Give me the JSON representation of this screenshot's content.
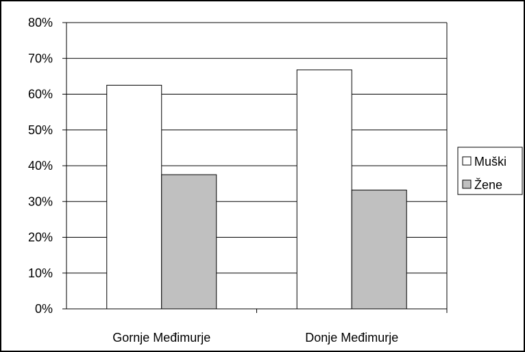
{
  "chart_data": {
    "type": "bar",
    "title": "",
    "xlabel": "",
    "ylabel": "",
    "categories": [
      "Gornje Međimurje",
      "Donje Međimurje"
    ],
    "series": [
      {
        "name": "Muški",
        "values": [
          62.5,
          66.8
        ],
        "color": "#ffffff"
      },
      {
        "name": "Žene",
        "values": [
          37.5,
          33.2
        ],
        "color": "#c0c0c0"
      }
    ],
    "ylim": [
      0,
      80
    ],
    "yticks": [
      0,
      10,
      20,
      30,
      40,
      50,
      60,
      70,
      80
    ],
    "ytick_labels": [
      "0%",
      "10%",
      "20%",
      "30%",
      "40%",
      "50%",
      "60%",
      "70%",
      "80%"
    ],
    "grid": true,
    "legend_position": "right"
  }
}
